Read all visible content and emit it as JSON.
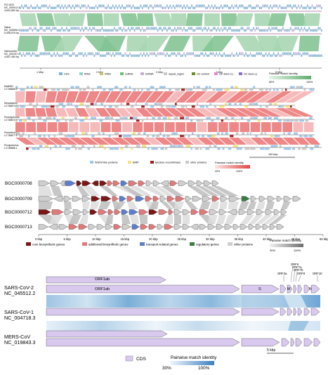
{
  "panel1": {
    "genomes": [
      {
        "name": "FIG 8G3",
        "id": "NC_000913.3",
        "size": "4,641,652 bp"
      },
      {
        "name": "Sakai",
        "id": "NC_002695.2",
        "size": "5,498,578 bp"
      },
      {
        "name": "Salmonella",
        "id": "NC_003197.2",
        "size": "4,857,450 bp"
      }
    ],
    "ticks": [
      "1 Mbp",
      "2 Mbp",
      "3 Mbp",
      "4 Mbp",
      "5 Mbp"
    ],
    "legend": [
      "CDS",
      "tRNA",
      "rRNA",
      "ncRNA",
      "tmRNA",
      "repeat_region",
      "GC content",
      "GC skew (+)",
      "GC skew (-)"
    ],
    "legend_colors": [
      "#7fb3d5",
      "#8fd3c8",
      "#c9c66a",
      "#6fbf73",
      "#c7b0d8",
      "#c9c9c9",
      "#6b8e23",
      "#e08ad0",
      "#8a6fd0"
    ],
    "identity_title": "Pairwise match identity",
    "identity_min": "80%",
    "identity_max": "100%"
  },
  "panel2": {
    "genomes": [
      {
        "name": "Mat4961",
        "id": "LC738865.1"
      },
      {
        "name": "Nevadavirus",
        "id": "LC738874.1"
      },
      {
        "name": "Penelopevirus",
        "id": "LC738872.1"
      },
      {
        "name": "Peewhitvirus",
        "id": "LC738877.1"
      },
      {
        "name": "Pinnipedvirus",
        "id": "LC738888.1"
      }
    ],
    "scale": "100 kbp",
    "legend": [
      "WSSV-like proteins",
      "BIRP",
      "tyrosine recombinase",
      "other proteins"
    ],
    "legend_colors": [
      "#9ec8ea",
      "#f3e27a",
      "#a31f1f",
      "#c8c8c8"
    ],
    "identity_title": "Pairwise match identity",
    "identity_min": "20%",
    "identity_max": "100%"
  },
  "panel3": {
    "tracks": [
      "BGC0000708",
      "BGC0000709",
      "BGC0000712",
      "BGC0000713"
    ],
    "ticks": [
      "0 kbp",
      "5 kbp",
      "10 kbp",
      "15 kbp",
      "20 kbp",
      "25 kbp",
      "30 kbp",
      "35 kbp",
      "40 kbp",
      "45 kbp",
      "50 kbp"
    ],
    "legend": [
      "core biosynthetic genes",
      "additional biosynthetic genes",
      "transport-related genes",
      "regulatory genes",
      "other proteins"
    ],
    "legend_colors": [
      "#7a1616",
      "#e07a7a",
      "#5b7fcf",
      "#3a7d44",
      "#cfcfcf"
    ],
    "identity_title": "Pairwise match identity",
    "identity_min": "30%",
    "identity_max": "100%"
  },
  "panel4": {
    "genomes": [
      {
        "name": "SARS-CoV-2",
        "id": "NC_045512.2"
      },
      {
        "name": "SARS-CoV-1",
        "id": "NC_004718.3"
      },
      {
        "name": "MERS-CoV",
        "id": "NC_019843.3"
      }
    ],
    "gene_labels": [
      "ORF1ab",
      "ORF1ab",
      "S",
      "M",
      "N",
      "ORF3a",
      "ORF6",
      "ORF7a",
      "ORF7b",
      "ORF8",
      "ORF10"
    ],
    "scale": "5 kbp",
    "legend_item": "CDS",
    "cds_color": "#d9c9ef",
    "identity_title": "Pairwise match identity",
    "identity_min": "30%",
    "identity_max": "100%"
  }
}
